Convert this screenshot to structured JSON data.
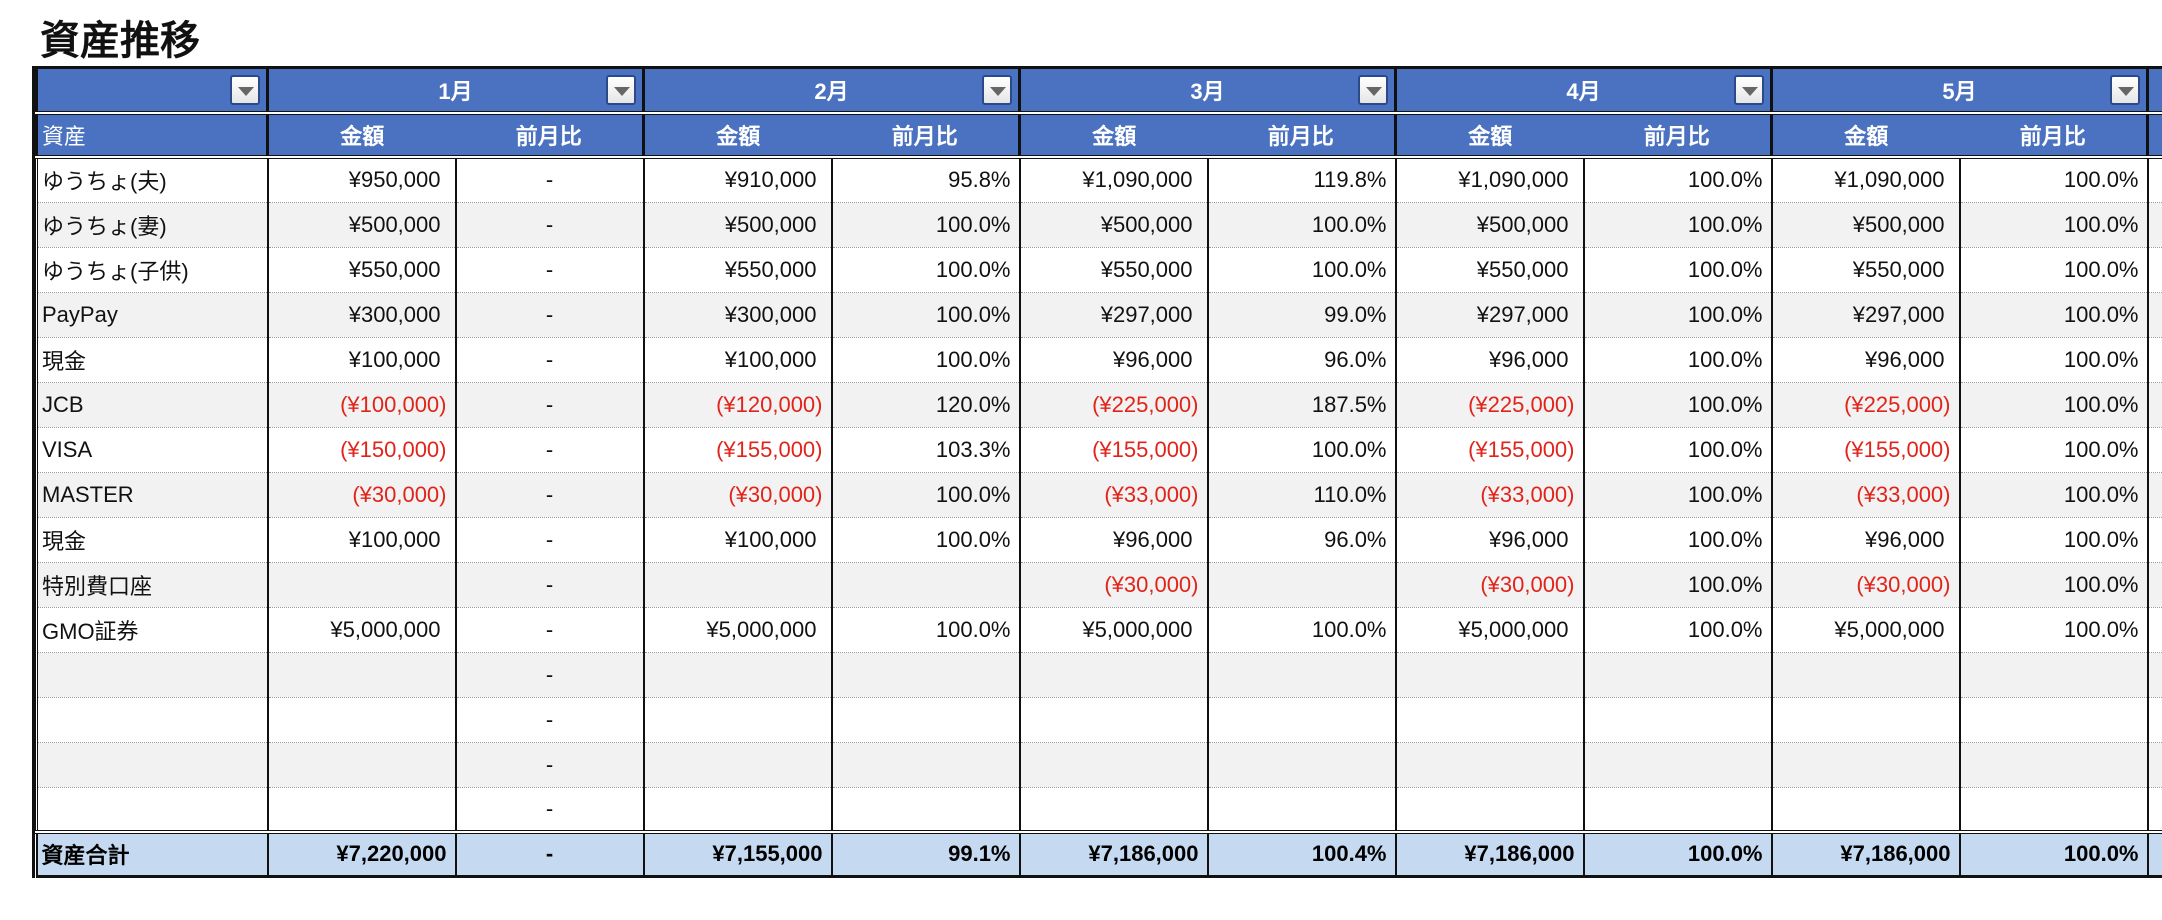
{
  "title": "資産推移",
  "colors": {
    "header": "#4a72c0",
    "total": "#c5d9f1",
    "negative": "#e2231a",
    "stripe": "#f2f2f2"
  },
  "header": {
    "months": [
      "1月",
      "2月",
      "3月",
      "4月",
      "5月"
    ],
    "asset_label": "資産",
    "amount_label": "金額",
    "ratio_label": "前月比"
  },
  "rows": [
    {
      "name": "ゆうちょ(夫)",
      "cells": [
        "¥950,000",
        "-",
        "¥910,000",
        "95.8%",
        "¥1,090,000",
        "119.8%",
        "¥1,090,000",
        "100.0%",
        "¥1,090,000",
        "100.0%"
      ]
    },
    {
      "name": "ゆうちょ(妻)",
      "cells": [
        "¥500,000",
        "-",
        "¥500,000",
        "100.0%",
        "¥500,000",
        "100.0%",
        "¥500,000",
        "100.0%",
        "¥500,000",
        "100.0%"
      ]
    },
    {
      "name": "ゆうちょ(子供)",
      "cells": [
        "¥550,000",
        "-",
        "¥550,000",
        "100.0%",
        "¥550,000",
        "100.0%",
        "¥550,000",
        "100.0%",
        "¥550,000",
        "100.0%"
      ]
    },
    {
      "name": "PayPay",
      "cells": [
        "¥300,000",
        "-",
        "¥300,000",
        "100.0%",
        "¥297,000",
        "99.0%",
        "¥297,000",
        "100.0%",
        "¥297,000",
        "100.0%"
      ]
    },
    {
      "name": "現金",
      "cells": [
        "¥100,000",
        "-",
        "¥100,000",
        "100.0%",
        "¥96,000",
        "96.0%",
        "¥96,000",
        "100.0%",
        "¥96,000",
        "100.0%"
      ]
    },
    {
      "name": "JCB",
      "cells": [
        "(¥100,000)",
        "-",
        "(¥120,000)",
        "120.0%",
        "(¥225,000)",
        "187.5%",
        "(¥225,000)",
        "100.0%",
        "(¥225,000)",
        "100.0%"
      ]
    },
    {
      "name": "VISA",
      "cells": [
        "(¥150,000)",
        "-",
        "(¥155,000)",
        "103.3%",
        "(¥155,000)",
        "100.0%",
        "(¥155,000)",
        "100.0%",
        "(¥155,000)",
        "100.0%"
      ]
    },
    {
      "name": "MASTER",
      "cells": [
        "(¥30,000)",
        "-",
        "(¥30,000)",
        "100.0%",
        "(¥33,000)",
        "110.0%",
        "(¥33,000)",
        "100.0%",
        "(¥33,000)",
        "100.0%"
      ]
    },
    {
      "name": "現金",
      "cells": [
        "¥100,000",
        "-",
        "¥100,000",
        "100.0%",
        "¥96,000",
        "96.0%",
        "¥96,000",
        "100.0%",
        "¥96,000",
        "100.0%"
      ]
    },
    {
      "name": "特別費口座",
      "cells": [
        "",
        "-",
        "",
        "",
        "(¥30,000)",
        "",
        "(¥30,000)",
        "100.0%",
        "(¥30,000)",
        "100.0%"
      ]
    },
    {
      "name": "GMO証券",
      "cells": [
        "¥5,000,000",
        "-",
        "¥5,000,000",
        "100.0%",
        "¥5,000,000",
        "100.0%",
        "¥5,000,000",
        "100.0%",
        "¥5,000,000",
        "100.0%"
      ]
    },
    {
      "name": "",
      "cells": [
        "",
        "-",
        "",
        "",
        "",
        "",
        "",
        "",
        "",
        ""
      ]
    },
    {
      "name": "",
      "cells": [
        "",
        "-",
        "",
        "",
        "",
        "",
        "",
        "",
        "",
        ""
      ]
    },
    {
      "name": "",
      "cells": [
        "",
        "-",
        "",
        "",
        "",
        "",
        "",
        "",
        "",
        ""
      ]
    },
    {
      "name": "",
      "cells": [
        "",
        "-",
        "",
        "",
        "",
        "",
        "",
        "",
        "",
        ""
      ]
    }
  ],
  "total": {
    "name": "資産合計",
    "cells": [
      "¥7,220,000",
      "-",
      "¥7,155,000",
      "99.1%",
      "¥7,186,000",
      "100.4%",
      "¥7,186,000",
      "100.0%",
      "¥7,186,000",
      "100.0%"
    ]
  }
}
